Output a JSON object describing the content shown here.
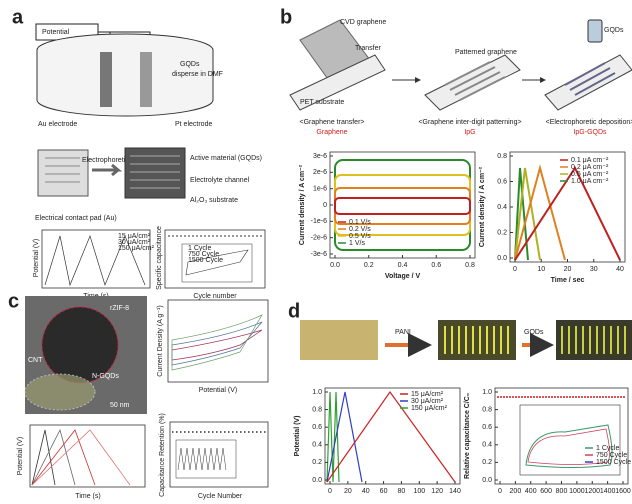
{
  "panel_a": {
    "label": "a",
    "potential": "Potential",
    "gqds": "GQDs",
    "disperse": "disperse in DMF",
    "au": "Au electrode",
    "pt": "Pt electrode",
    "deposition": "Electrophoretic deposition",
    "active": "Active material (GQDs)",
    "channel": "Electrolyte channel",
    "substrate": "Al₂O₃ substrate",
    "pad": "Electrical contact pad (Au)",
    "plot1": {
      "ylabel": "Potential (V)",
      "xlabel": "Time (s)",
      "legend": [
        "15 μA/cm²",
        "30 μA/cm²",
        "150 μA/cm²"
      ]
    },
    "plot2": {
      "ylabel": "Specific capacitance",
      "xlabel": "Cycle number",
      "legend": [
        "1 Cycle",
        "750 Cycle",
        "1500 Cycle"
      ]
    }
  },
  "panel_b": {
    "label": "b",
    "cvd": "CVD graphene",
    "transfer": "Transfer",
    "pet": "PET substrate",
    "patterned": "Patterned graphene",
    "gqds": "GQDs",
    "steps": [
      {
        "caption": "<Graphene transfer>",
        "name": "Graphene"
      },
      {
        "caption": "<Graphene inter-digit patterning>",
        "name": "IpG"
      },
      {
        "caption": "<Electrophoretic deposition>",
        "name": "IpG-GQDs"
      }
    ],
    "cv": {
      "ylabel": "Current density / A cm⁻²",
      "xlabel": "Voltage / V",
      "yticks": [
        "3e-6",
        "2e-6",
        "1e-6",
        "0",
        "-1e-6",
        "-2e-6",
        "-3e-6"
      ],
      "xticks": [
        "0.0",
        "0.2",
        "0.4",
        "0.6",
        "0.8"
      ],
      "legend": [
        "0.1 V/s",
        "0.2 V/s",
        "0.5 V/s",
        "1 V/s"
      ]
    },
    "gcd": {
      "ylabel": "Current density / A cm⁻²",
      "xlabel": "Time / sec",
      "yticks": [
        "0.8",
        "0.6",
        "0.4",
        "0.2",
        "0.0"
      ],
      "xticks": [
        "0",
        "10",
        "20",
        "30",
        "40"
      ],
      "legend": [
        "0.1 μA cm⁻²",
        "0.2 μA cm⁻²",
        "0.5 μA cm⁻²",
        "1.0 μA cm⁻²"
      ]
    }
  },
  "panel_c": {
    "label": "c",
    "zif": "rZIF-8",
    "cnt": "CNT",
    "ngqds": "N-GQDs",
    "scale": "50 nm",
    "cv": {
      "ylabel": "Current Density (A g⁻¹)",
      "xlabel": "Potential (V)"
    },
    "gcd": {
      "ylabel": "Potential (V)",
      "xlabel": "Time (s)"
    },
    "cycle": {
      "ylabel": "Capacitance Retention (%)",
      "xlabel": "Cycle Number"
    }
  },
  "panel_d": {
    "label": "d",
    "pani": "PANI",
    "gqds": "GQDs",
    "gcd": {
      "ylabel": "Potential (V)",
      "yticks": [
        "1.0",
        "0.8",
        "0.6",
        "0.4",
        "0.2",
        "0.0"
      ],
      "xticks": [
        "0",
        "20",
        "40",
        "60",
        "80",
        "100",
        "120",
        "140"
      ],
      "legend": [
        "15 μA/cm²",
        "30 μA/cm²",
        "150 μA/cm²"
      ]
    },
    "cycle": {
      "ylabel": "Relative capacitance C/C₀",
      "yticks": [
        "1.0",
        "0.8",
        "0.6",
        "0.4",
        "0.2",
        "0.0"
      ],
      "xticks": [
        "0",
        "200",
        "400",
        "600",
        "800",
        "1000",
        "1200",
        "1400",
        "1600"
      ],
      "legend": [
        "1 Cycle",
        "750 Cycle",
        "1500 Cycle"
      ]
    }
  }
}
